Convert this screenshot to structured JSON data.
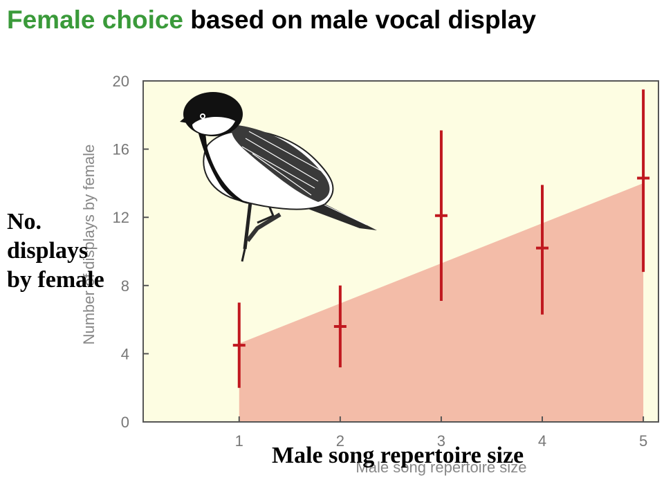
{
  "title": {
    "highlight": "Female choice",
    "rest": " based on male vocal display",
    "highlight_color": "#3a9a3a"
  },
  "overlay_labels": {
    "ylabel_lines": [
      "No.",
      "displays",
      "by female"
    ],
    "xlabel": "Male song repertoire size"
  },
  "chart_data": {
    "type": "scatter",
    "xlabel": "Male song repertoire size",
    "ylabel": "Number of displays by female",
    "x": [
      1,
      2,
      3,
      4,
      5
    ],
    "y": [
      4.5,
      5.6,
      12.1,
      10.2,
      14.3
    ],
    "error_low": [
      2.0,
      3.2,
      7.1,
      6.3,
      8.8
    ],
    "error_high": [
      7.0,
      8.0,
      17.1,
      13.9,
      19.5
    ],
    "trend_fill": {
      "x": [
        1,
        5
      ],
      "y": [
        4.6,
        14.0
      ]
    },
    "xlim": [
      0.05,
      5.15
    ],
    "ylim": [
      0,
      20
    ],
    "xticks": [
      "1",
      "2",
      "3",
      "4",
      "5"
    ],
    "yticks": [
      "0",
      "4",
      "8",
      "12",
      "16",
      "20"
    ],
    "grid": false,
    "colors": {
      "plot_bg": "#fdfde2",
      "trend_fill": "#f3bca8",
      "marker": "#c0181f",
      "axis": "#555555"
    }
  },
  "illustration": "great-tit-bird"
}
